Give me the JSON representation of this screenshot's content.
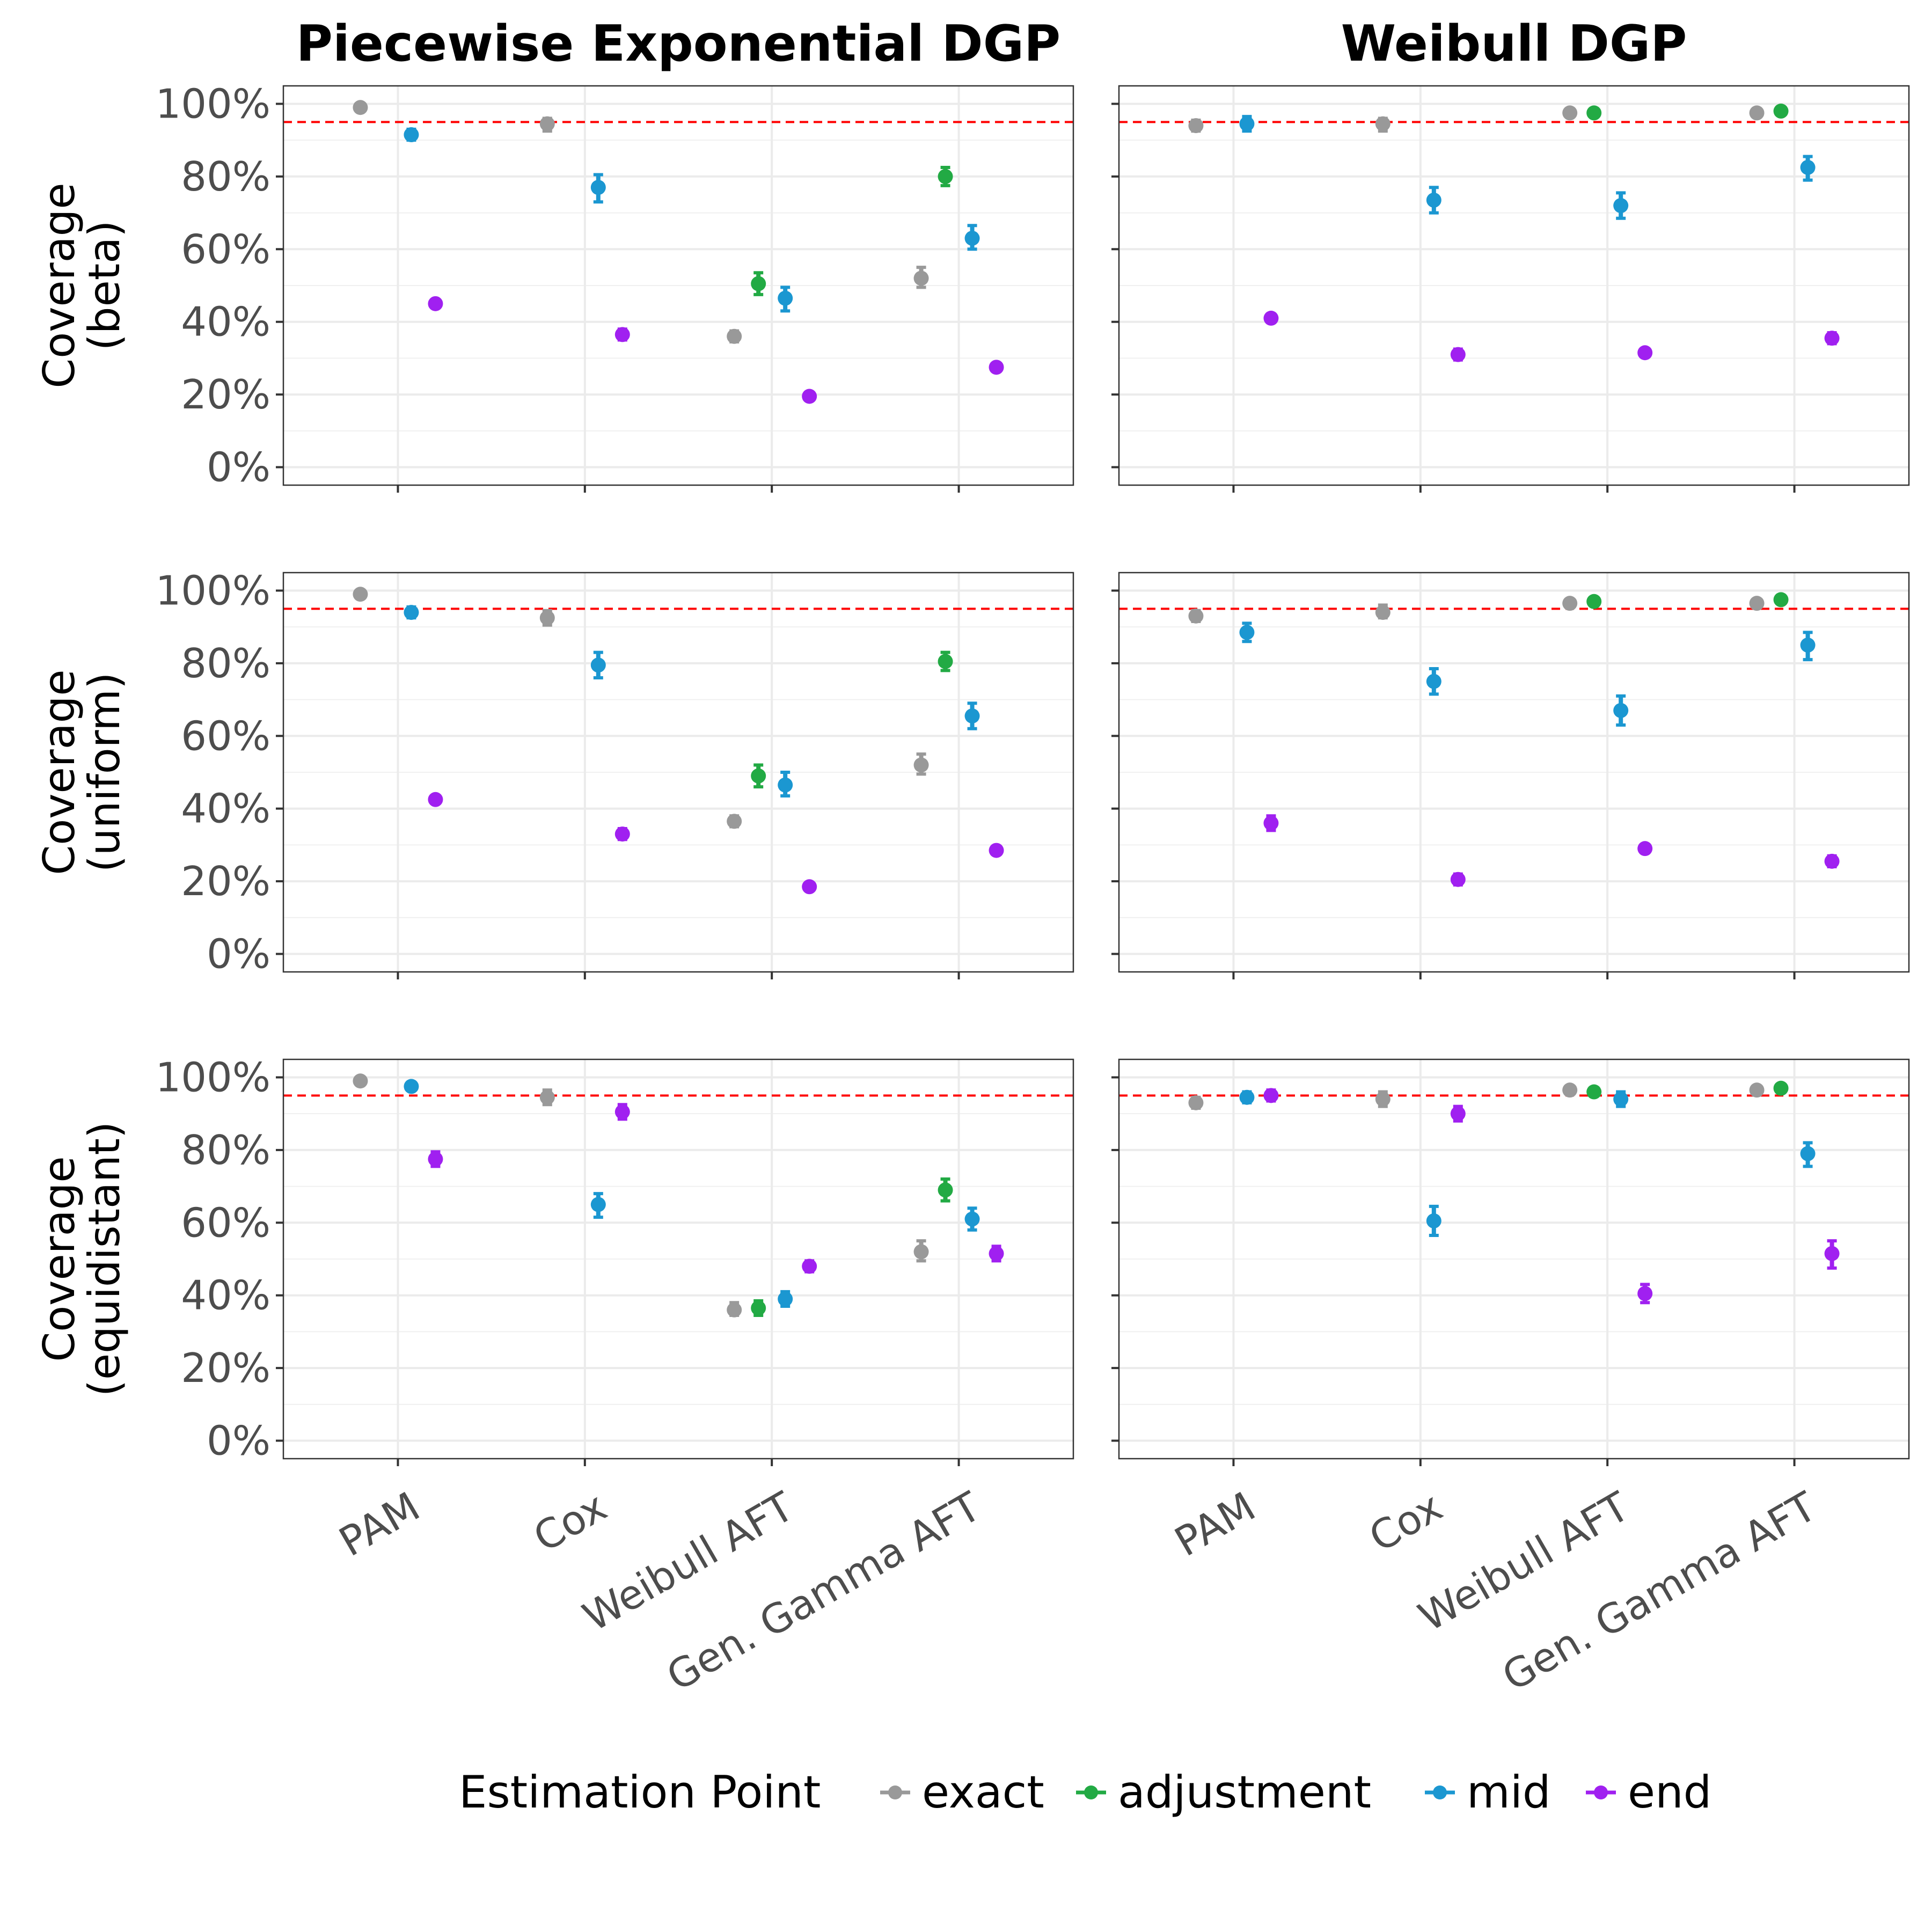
{
  "chart_data": {
    "type": "scatter",
    "columns": [
      "Piecewise Exponential DGP",
      "Weibull DGP"
    ],
    "rows": [
      "Coverage\n(beta)",
      "Coverage\n(uniform)",
      "Coverage\n(equidistant)"
    ],
    "categories": [
      "PAM",
      "Cox",
      "Weibull AFT",
      "Gen. Gamma AFT"
    ],
    "ylim": [
      0,
      1
    ],
    "y_ticks": [
      "0%",
      "20%",
      "40%",
      "60%",
      "80%",
      "100%"
    ],
    "reference_line": {
      "y": 0.95,
      "color": "#FF0000",
      "style": "dashed"
    },
    "grid": true,
    "legend": {
      "title": "Estimation Point",
      "position": "bottom",
      "entries": [
        {
          "name": "exact",
          "color": "#999999"
        },
        {
          "name": "adjustment",
          "color": "#22AA44"
        },
        {
          "name": "mid",
          "color": "#1B97D1"
        },
        {
          "name": "end",
          "color": "#A020F0"
        }
      ]
    },
    "panels": [
      {
        "row": 0,
        "col": 0,
        "points": [
          {
            "model": "PAM",
            "series": "exact",
            "y": 0.99,
            "lo": 0.985,
            "hi": 0.995
          },
          {
            "model": "PAM",
            "series": "mid",
            "y": 0.915,
            "lo": 0.9,
            "hi": 0.93
          },
          {
            "model": "PAM",
            "series": "end",
            "y": 0.45,
            "lo": 0.445,
            "hi": 0.455
          },
          {
            "model": "Cox",
            "series": "exact",
            "y": 0.945,
            "lo": 0.925,
            "hi": 0.96
          },
          {
            "model": "Cox",
            "series": "mid",
            "y": 0.77,
            "lo": 0.73,
            "hi": 0.805
          },
          {
            "model": "Cox",
            "series": "end",
            "y": 0.365,
            "lo": 0.35,
            "hi": 0.38
          },
          {
            "model": "Weibull AFT",
            "series": "exact",
            "y": 0.36,
            "lo": 0.345,
            "hi": 0.375
          },
          {
            "model": "Weibull AFT",
            "series": "adjustment",
            "y": 0.505,
            "lo": 0.475,
            "hi": 0.535
          },
          {
            "model": "Weibull AFT",
            "series": "mid",
            "y": 0.465,
            "lo": 0.43,
            "hi": 0.495
          },
          {
            "model": "Weibull AFT",
            "series": "end",
            "y": 0.195,
            "lo": 0.185,
            "hi": 0.205
          },
          {
            "model": "Gen. Gamma AFT",
            "series": "exact",
            "y": 0.52,
            "lo": 0.495,
            "hi": 0.55
          },
          {
            "model": "Gen. Gamma AFT",
            "series": "adjustment",
            "y": 0.8,
            "lo": 0.775,
            "hi": 0.825
          },
          {
            "model": "Gen. Gamma AFT",
            "series": "mid",
            "y": 0.63,
            "lo": 0.6,
            "hi": 0.665
          },
          {
            "model": "Gen. Gamma AFT",
            "series": "end",
            "y": 0.275,
            "lo": 0.265,
            "hi": 0.285
          }
        ]
      },
      {
        "row": 0,
        "col": 1,
        "points": [
          {
            "model": "PAM",
            "series": "exact",
            "y": 0.94,
            "lo": 0.925,
            "hi": 0.955
          },
          {
            "model": "PAM",
            "series": "mid",
            "y": 0.945,
            "lo": 0.925,
            "hi": 0.965
          },
          {
            "model": "PAM",
            "series": "end",
            "y": 0.41,
            "lo": 0.4,
            "hi": 0.42
          },
          {
            "model": "Cox",
            "series": "exact",
            "y": 0.945,
            "lo": 0.925,
            "hi": 0.96
          },
          {
            "model": "Cox",
            "series": "mid",
            "y": 0.735,
            "lo": 0.7,
            "hi": 0.77
          },
          {
            "model": "Cox",
            "series": "end",
            "y": 0.31,
            "lo": 0.295,
            "hi": 0.325
          },
          {
            "model": "Weibull AFT",
            "series": "exact",
            "y": 0.975,
            "lo": 0.97,
            "hi": 0.98
          },
          {
            "model": "Weibull AFT",
            "series": "adjustment",
            "y": 0.975,
            "lo": 0.97,
            "hi": 0.98
          },
          {
            "model": "Weibull AFT",
            "series": "mid",
            "y": 0.72,
            "lo": 0.685,
            "hi": 0.755
          },
          {
            "model": "Weibull AFT",
            "series": "end",
            "y": 0.315,
            "lo": 0.305,
            "hi": 0.325
          },
          {
            "model": "Gen. Gamma AFT",
            "series": "exact",
            "y": 0.975,
            "lo": 0.97,
            "hi": 0.98
          },
          {
            "model": "Gen. Gamma AFT",
            "series": "adjustment",
            "y": 0.98,
            "lo": 0.975,
            "hi": 0.985
          },
          {
            "model": "Gen. Gamma AFT",
            "series": "mid",
            "y": 0.825,
            "lo": 0.79,
            "hi": 0.855
          },
          {
            "model": "Gen. Gamma AFT",
            "series": "end",
            "y": 0.355,
            "lo": 0.34,
            "hi": 0.37
          }
        ]
      },
      {
        "row": 1,
        "col": 0,
        "points": [
          {
            "model": "PAM",
            "series": "exact",
            "y": 0.99,
            "lo": 0.985,
            "hi": 0.995
          },
          {
            "model": "PAM",
            "series": "mid",
            "y": 0.94,
            "lo": 0.925,
            "hi": 0.955
          },
          {
            "model": "PAM",
            "series": "end",
            "y": 0.425,
            "lo": 0.42,
            "hi": 0.43
          },
          {
            "model": "Cox",
            "series": "exact",
            "y": 0.925,
            "lo": 0.905,
            "hi": 0.945
          },
          {
            "model": "Cox",
            "series": "mid",
            "y": 0.795,
            "lo": 0.76,
            "hi": 0.83
          },
          {
            "model": "Cox",
            "series": "end",
            "y": 0.33,
            "lo": 0.315,
            "hi": 0.345
          },
          {
            "model": "Weibull AFT",
            "series": "exact",
            "y": 0.365,
            "lo": 0.35,
            "hi": 0.38
          },
          {
            "model": "Weibull AFT",
            "series": "adjustment",
            "y": 0.49,
            "lo": 0.46,
            "hi": 0.52
          },
          {
            "model": "Weibull AFT",
            "series": "mid",
            "y": 0.465,
            "lo": 0.435,
            "hi": 0.5
          },
          {
            "model": "Weibull AFT",
            "series": "end",
            "y": 0.185,
            "lo": 0.175,
            "hi": 0.195
          },
          {
            "model": "Gen. Gamma AFT",
            "series": "exact",
            "y": 0.52,
            "lo": 0.495,
            "hi": 0.55
          },
          {
            "model": "Gen. Gamma AFT",
            "series": "adjustment",
            "y": 0.805,
            "lo": 0.78,
            "hi": 0.83
          },
          {
            "model": "Gen. Gamma AFT",
            "series": "mid",
            "y": 0.655,
            "lo": 0.62,
            "hi": 0.69
          },
          {
            "model": "Gen. Gamma AFT",
            "series": "end",
            "y": 0.285,
            "lo": 0.275,
            "hi": 0.295
          }
        ]
      },
      {
        "row": 1,
        "col": 1,
        "points": [
          {
            "model": "PAM",
            "series": "exact",
            "y": 0.93,
            "lo": 0.915,
            "hi": 0.945
          },
          {
            "model": "PAM",
            "series": "mid",
            "y": 0.885,
            "lo": 0.86,
            "hi": 0.91
          },
          {
            "model": "PAM",
            "series": "end",
            "y": 0.36,
            "lo": 0.34,
            "hi": 0.38
          },
          {
            "model": "Cox",
            "series": "exact",
            "y": 0.94,
            "lo": 0.925,
            "hi": 0.96
          },
          {
            "model": "Cox",
            "series": "mid",
            "y": 0.75,
            "lo": 0.715,
            "hi": 0.785
          },
          {
            "model": "Cox",
            "series": "end",
            "y": 0.205,
            "lo": 0.19,
            "hi": 0.22
          },
          {
            "model": "Weibull AFT",
            "series": "exact",
            "y": 0.965,
            "lo": 0.955,
            "hi": 0.975
          },
          {
            "model": "Weibull AFT",
            "series": "adjustment",
            "y": 0.97,
            "lo": 0.965,
            "hi": 0.975
          },
          {
            "model": "Weibull AFT",
            "series": "mid",
            "y": 0.67,
            "lo": 0.63,
            "hi": 0.71
          },
          {
            "model": "Weibull AFT",
            "series": "end",
            "y": 0.29,
            "lo": 0.28,
            "hi": 0.3
          },
          {
            "model": "Gen. Gamma AFT",
            "series": "exact",
            "y": 0.965,
            "lo": 0.955,
            "hi": 0.975
          },
          {
            "model": "Gen. Gamma AFT",
            "series": "adjustment",
            "y": 0.975,
            "lo": 0.97,
            "hi": 0.98
          },
          {
            "model": "Gen. Gamma AFT",
            "series": "mid",
            "y": 0.85,
            "lo": 0.81,
            "hi": 0.885
          },
          {
            "model": "Gen. Gamma AFT",
            "series": "end",
            "y": 0.255,
            "lo": 0.24,
            "hi": 0.27
          }
        ]
      },
      {
        "row": 2,
        "col": 0,
        "points": [
          {
            "model": "PAM",
            "series": "exact",
            "y": 0.99,
            "lo": 0.985,
            "hi": 0.995
          },
          {
            "model": "PAM",
            "series": "mid",
            "y": 0.975,
            "lo": 0.965,
            "hi": 0.985
          },
          {
            "model": "PAM",
            "series": "end",
            "y": 0.775,
            "lo": 0.755,
            "hi": 0.795
          },
          {
            "model": "Cox",
            "series": "exact",
            "y": 0.945,
            "lo": 0.925,
            "hi": 0.965
          },
          {
            "model": "Cox",
            "series": "mid",
            "y": 0.65,
            "lo": 0.615,
            "hi": 0.68
          },
          {
            "model": "Cox",
            "series": "end",
            "y": 0.905,
            "lo": 0.885,
            "hi": 0.925
          },
          {
            "model": "Weibull AFT",
            "series": "exact",
            "y": 0.36,
            "lo": 0.345,
            "hi": 0.38
          },
          {
            "model": "Weibull AFT",
            "series": "adjustment",
            "y": 0.365,
            "lo": 0.345,
            "hi": 0.385
          },
          {
            "model": "Weibull AFT",
            "series": "mid",
            "y": 0.39,
            "lo": 0.37,
            "hi": 0.41
          },
          {
            "model": "Weibull AFT",
            "series": "end",
            "y": 0.48,
            "lo": 0.465,
            "hi": 0.495
          },
          {
            "model": "Gen. Gamma AFT",
            "series": "exact",
            "y": 0.52,
            "lo": 0.495,
            "hi": 0.55
          },
          {
            "model": "Gen. Gamma AFT",
            "series": "adjustment",
            "y": 0.69,
            "lo": 0.66,
            "hi": 0.72
          },
          {
            "model": "Gen. Gamma AFT",
            "series": "mid",
            "y": 0.61,
            "lo": 0.58,
            "hi": 0.64
          },
          {
            "model": "Gen. Gamma AFT",
            "series": "end",
            "y": 0.515,
            "lo": 0.495,
            "hi": 0.535
          }
        ]
      },
      {
        "row": 2,
        "col": 1,
        "points": [
          {
            "model": "PAM",
            "series": "exact",
            "y": 0.93,
            "lo": 0.915,
            "hi": 0.945
          },
          {
            "model": "PAM",
            "series": "mid",
            "y": 0.945,
            "lo": 0.93,
            "hi": 0.96
          },
          {
            "model": "PAM",
            "series": "end",
            "y": 0.95,
            "lo": 0.935,
            "hi": 0.965
          },
          {
            "model": "Cox",
            "series": "exact",
            "y": 0.94,
            "lo": 0.92,
            "hi": 0.96
          },
          {
            "model": "Cox",
            "series": "mid",
            "y": 0.605,
            "lo": 0.565,
            "hi": 0.645
          },
          {
            "model": "Cox",
            "series": "end",
            "y": 0.9,
            "lo": 0.88,
            "hi": 0.92
          },
          {
            "model": "Weibull AFT",
            "series": "exact",
            "y": 0.965,
            "lo": 0.955,
            "hi": 0.975
          },
          {
            "model": "Weibull AFT",
            "series": "adjustment",
            "y": 0.96,
            "lo": 0.95,
            "hi": 0.97
          },
          {
            "model": "Weibull AFT",
            "series": "mid",
            "y": 0.94,
            "lo": 0.92,
            "hi": 0.96
          },
          {
            "model": "Weibull AFT",
            "series": "end",
            "y": 0.405,
            "lo": 0.38,
            "hi": 0.43
          },
          {
            "model": "Gen. Gamma AFT",
            "series": "exact",
            "y": 0.965,
            "lo": 0.955,
            "hi": 0.975
          },
          {
            "model": "Gen. Gamma AFT",
            "series": "adjustment",
            "y": 0.97,
            "lo": 0.965,
            "hi": 0.975
          },
          {
            "model": "Gen. Gamma AFT",
            "series": "mid",
            "y": 0.79,
            "lo": 0.755,
            "hi": 0.82
          },
          {
            "model": "Gen. Gamma AFT",
            "series": "end",
            "y": 0.515,
            "lo": 0.475,
            "hi": 0.55
          }
        ]
      }
    ]
  }
}
